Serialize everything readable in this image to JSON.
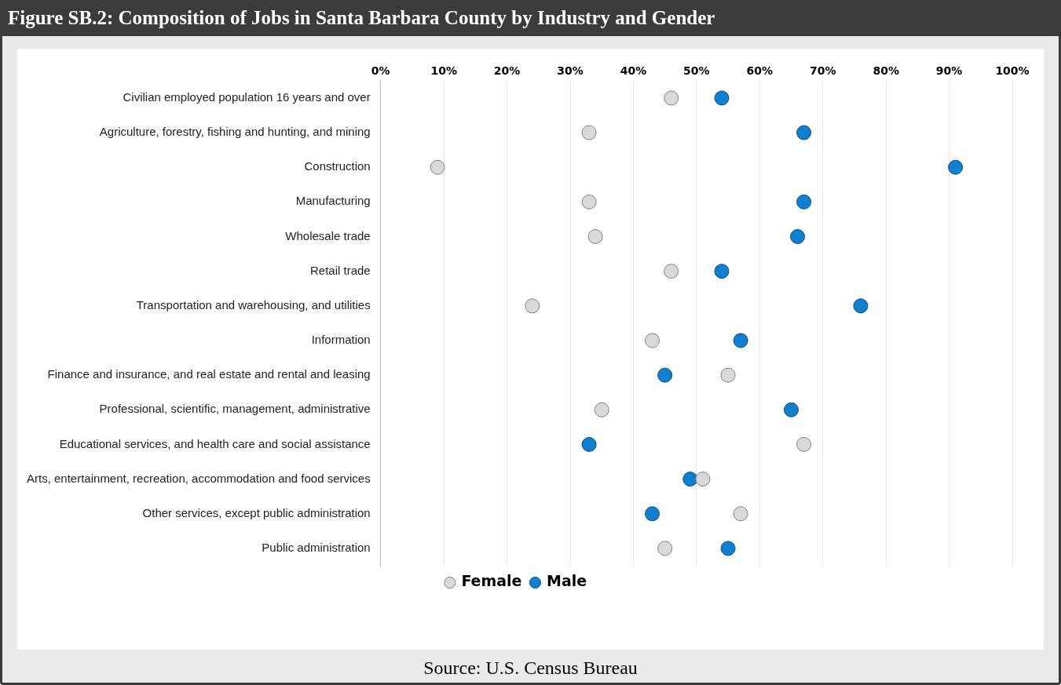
{
  "chart_data": {
    "type": "scatter",
    "orientation": "horizontal",
    "title": "Figure SB.2: Composition of Jobs in Santa Barbara County by Industry and Gender",
    "categories": [
      "Civilian employed population 16 years and over",
      "Agriculture, forestry, fishing and hunting, and mining",
      "Construction",
      "Manufacturing",
      "Wholesale trade",
      "Retail trade",
      "Transportation and warehousing, and utilities",
      "Information",
      "Finance and insurance, and real estate and rental and leasing",
      "Professional, scientific, management, administrative",
      "Educational services, and health care and social assistance",
      "Arts, entertainment, recreation, accommodation and food services",
      "Other services, except public administration",
      "Public administration"
    ],
    "series": [
      {
        "name": "Female",
        "color": "#d9d9d9",
        "values": [
          46,
          33,
          9,
          33,
          34,
          46,
          24,
          43,
          55,
          35,
          67,
          51,
          57,
          45
        ]
      },
      {
        "name": "Male",
        "color": "#0f7fcf",
        "values": [
          54,
          67,
          91,
          67,
          66,
          54,
          76,
          57,
          45,
          65,
          33,
          49,
          43,
          55
        ]
      }
    ],
    "xlim": [
      0,
      100
    ],
    "xticks": [
      {
        "value": 0,
        "label": "0%"
      },
      {
        "value": 10,
        "label": "10%"
      },
      {
        "value": 20,
        "label": "20%"
      },
      {
        "value": 30,
        "label": "30%"
      },
      {
        "value": 40,
        "label": "40%"
      },
      {
        "value": 50,
        "label": "50%"
      },
      {
        "value": 60,
        "label": "60%"
      },
      {
        "value": 70,
        "label": "70%"
      },
      {
        "value": 80,
        "label": "80%"
      },
      {
        "value": 90,
        "label": "90%"
      },
      {
        "value": 100,
        "label": "100%"
      }
    ],
    "grid": "x",
    "legend": "bottom",
    "marker": "circle",
    "annotations": [
      "Source: U.S. Census Bureau"
    ]
  }
}
